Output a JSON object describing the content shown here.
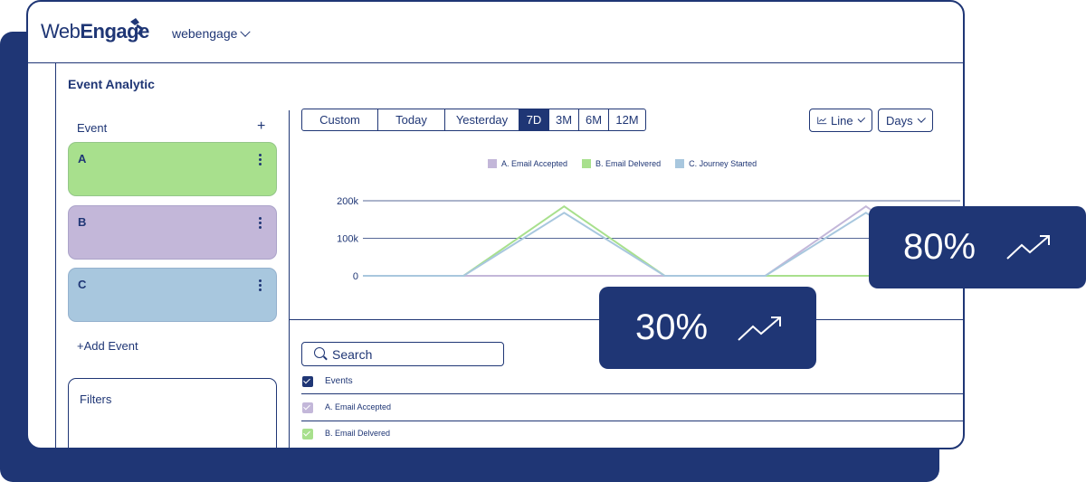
{
  "brand": {
    "logo_text_a": "Web",
    "logo_text_b": "Engage",
    "workspace": "webengage",
    "primary_color": "#1f3675"
  },
  "page": {
    "title": "Event Analytic"
  },
  "sidebar": {
    "event_header": "Event",
    "add_symbol": "+",
    "events": [
      {
        "label": "A",
        "color": "#a8e08d"
      },
      {
        "label": "B",
        "color": "#c3b7d9"
      },
      {
        "label": "C",
        "color": "#a8c7de"
      }
    ],
    "add_event": "+Add Event",
    "filters_label": "Filters"
  },
  "toolbar": {
    "ranges": [
      "Custom",
      "Today",
      "Yesterday",
      "7D",
      "3M",
      "6M",
      "12M"
    ],
    "active_range": "7D",
    "chart_type": "Line",
    "granularity": "Days"
  },
  "chart_data": {
    "type": "line",
    "x": [
      0,
      1,
      2,
      3,
      4,
      5,
      6
    ],
    "yticks": [
      "0",
      "100k",
      "200k"
    ],
    "ylim": [
      0,
      200000
    ],
    "grid": true,
    "legend_position": "top-center",
    "series": [
      {
        "name": "A. Email Accepted",
        "color": "#c3b7d9",
        "values": [
          0,
          0,
          0,
          0,
          0,
          185000,
          0
        ]
      },
      {
        "name": "B. Email Delvered",
        "color": "#a8e08d",
        "values": [
          0,
          0,
          185000,
          0,
          0,
          0,
          0
        ]
      },
      {
        "name": "C. Journey Started",
        "color": "#a8c7de",
        "values": [
          0,
          0,
          168000,
          0,
          0,
          168000,
          0
        ]
      }
    ]
  },
  "table": {
    "search_label": "Search",
    "header": "Events",
    "rows": [
      {
        "label": "A. Email Accepted",
        "color": "#c3b7d9"
      },
      {
        "label": "B. Email Delvered",
        "color": "#a8e08d"
      }
    ]
  },
  "badges": [
    {
      "value": "30%"
    },
    {
      "value": "80%"
    }
  ]
}
